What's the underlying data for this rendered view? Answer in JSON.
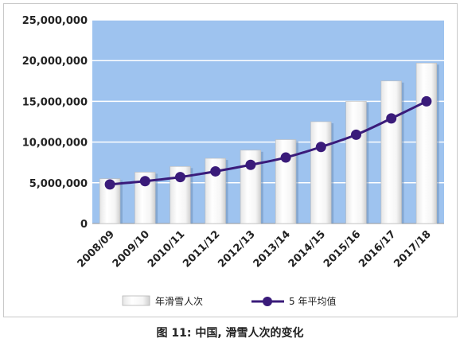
{
  "chart_data": {
    "type": "bar",
    "categories": [
      "2008/09",
      "2009/10",
      "2010/11",
      "2011/12",
      "2012/13",
      "2013/14",
      "2014/15",
      "2015/16",
      "2016/17",
      "2017/18"
    ],
    "series": [
      {
        "name": "年滑雪人次",
        "type": "bar",
        "values": [
          5500000,
          6300000,
          7000000,
          8000000,
          9000000,
          10300000,
          12500000,
          15000000,
          17500000,
          19700000
        ]
      },
      {
        "name": "5 年平均值",
        "type": "line",
        "values": [
          4800000,
          5200000,
          5700000,
          6400000,
          7200000,
          8100000,
          9400000,
          10900000,
          12900000,
          15000000
        ]
      }
    ],
    "y_tick_labels": [
      "0",
      "5,000,000",
      "10,000,000",
      "15,000,000",
      "20,000,000",
      "25,000,000"
    ],
    "ylim": [
      0,
      25000000
    ],
    "legend_position": "bottom",
    "grid": true
  },
  "colors": {
    "plot_background": "#9ec3ef",
    "gridline": "#ffffff",
    "bar_fill": "#f2f2f2",
    "line": "#3a1b7a"
  },
  "caption": "图 11: 中国, 滑雪人次的变化"
}
